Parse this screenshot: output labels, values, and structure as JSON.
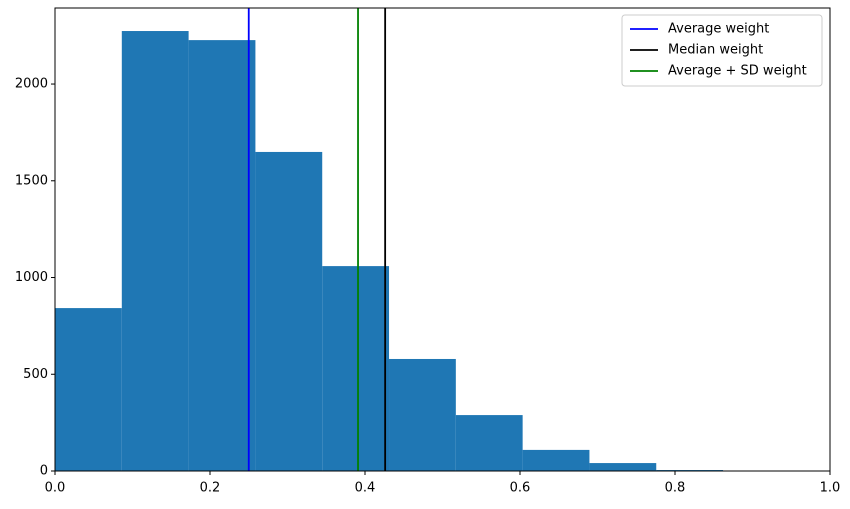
{
  "chart_data": {
    "type": "histogram",
    "bins": [
      0,
      0.0862,
      0.1724,
      0.2586,
      0.3448,
      0.431,
      0.5172,
      0.6034,
      0.6896,
      0.7758,
      0.862
    ],
    "counts": [
      842,
      2274,
      2227,
      1649,
      1059,
      579,
      289,
      109,
      41,
      5
    ],
    "color": "#1f77b4",
    "vlines": [
      {
        "name": "Average weight",
        "color": "#0000ff",
        "value": 0.25
      },
      {
        "name": "Median weight",
        "color": "#000000",
        "value": 0.426
      },
      {
        "name": "Average + SD weight",
        "color": "#008000",
        "value": 0.391
      }
    ],
    "xlim": [
      0,
      1
    ],
    "xticks": [
      {
        "value": 0,
        "label": "0.0"
      },
      0.2,
      0.4,
      0.6,
      0.8,
      {
        "value": 1,
        "label": "1.0"
      }
    ],
    "ylim": [
      0,
      2393
    ],
    "yticks": [
      0,
      500,
      1000,
      1500,
      2000
    ],
    "legend": "upper right"
  }
}
